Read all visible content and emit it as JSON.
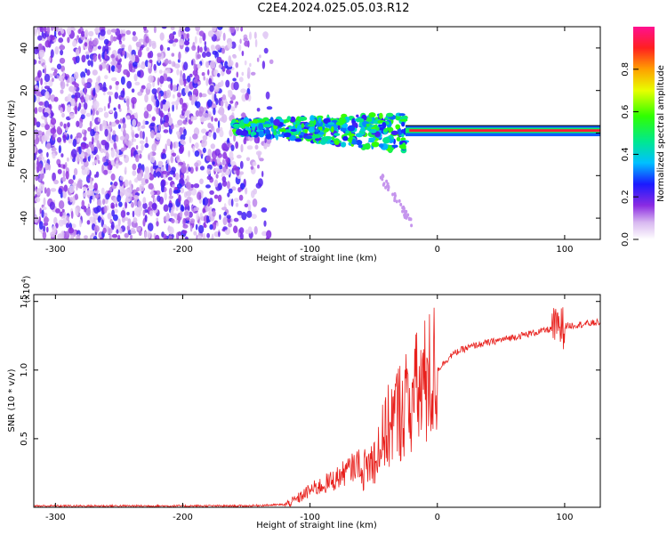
{
  "title": "C2E4.2024.025.05.03.R12",
  "colorbar": {
    "label": "Normalized spectral amplitude",
    "ticks": [
      "0.0",
      "0.2",
      "0.4",
      "0.6",
      "0.8"
    ],
    "tick_values": [
      0.0,
      0.2,
      0.4,
      0.6,
      0.8
    ],
    "range": [
      0,
      1
    ]
  },
  "chart_data": [
    {
      "type": "heatmap",
      "xlabel": "Height of straight line (km)",
      "ylabel": "Frequency (Hz)",
      "xlim": [
        -317,
        128
      ],
      "ylim": [
        -50,
        50
      ],
      "xticks": [
        -300,
        -200,
        -100,
        0,
        100
      ],
      "xtick_labels": [
        "-300",
        "-200",
        "-100",
        "0",
        "100"
      ],
      "yticks": [
        -40,
        -20,
        0,
        20,
        40
      ],
      "ytick_labels": [
        "-40",
        "-20",
        "0",
        "20",
        "40"
      ],
      "regions": [
        {
          "x_range": [
            -317,
            -140
          ],
          "f_range": [
            -50,
            50
          ],
          "amplitude": [
            0.05,
            0.25
          ],
          "pattern": "noise"
        },
        {
          "x_range": [
            -160,
            -25
          ],
          "f_range": [
            -12,
            12
          ],
          "amplitude": [
            0.2,
            0.6
          ],
          "pattern": "blobs"
        },
        {
          "x_range": [
            -25,
            128
          ],
          "f_range": [
            -1.5,
            3.5
          ],
          "amplitude": [
            0.85,
            1.0
          ],
          "pattern": "narrow band"
        }
      ]
    },
    {
      "type": "line",
      "xlabel": "Height of straight line (km)",
      "ylabel": "SNR (10 * v/v)",
      "y_scale_label": "(x10",
      "y_scale_exp": "4",
      "y_scale_close": ")",
      "xlim": [
        -317,
        128
      ],
      "ylim": [
        0,
        1.55
      ],
      "xticks": [
        -300,
        -200,
        -100,
        0,
        100
      ],
      "xtick_labels": [
        "-300",
        "-200",
        "-100",
        "0",
        "100"
      ],
      "yticks": [
        0.5,
        1.0,
        1.5
      ],
      "ytick_labels": [
        "0.5",
        "1.0",
        "1.5"
      ],
      "color": "#e8201c",
      "series": [
        {
          "x": [
            -317,
            -250,
            -200,
            -150,
            -120,
            -110,
            -100,
            -90,
            -80,
            -70,
            -60,
            -50,
            -45,
            -40,
            -35,
            -30,
            -25,
            -20,
            -15,
            -10,
            -5,
            0,
            5,
            10,
            15,
            20,
            30,
            40,
            50,
            60,
            70,
            80,
            90,
            95,
            100,
            110,
            120,
            128
          ],
          "y": [
            0.01,
            0.01,
            0.01,
            0.01,
            0.02,
            0.05,
            0.1,
            0.12,
            0.15,
            0.2,
            0.25,
            0.35,
            0.45,
            0.55,
            0.65,
            0.7,
            0.75,
            0.8,
            0.85,
            0.9,
            0.95,
            1.0,
            1.05,
            1.1,
            1.13,
            1.15,
            1.18,
            1.2,
            1.22,
            1.24,
            1.26,
            1.28,
            1.3,
            1.32,
            1.32,
            1.33,
            1.34,
            1.35
          ]
        }
      ]
    }
  ]
}
